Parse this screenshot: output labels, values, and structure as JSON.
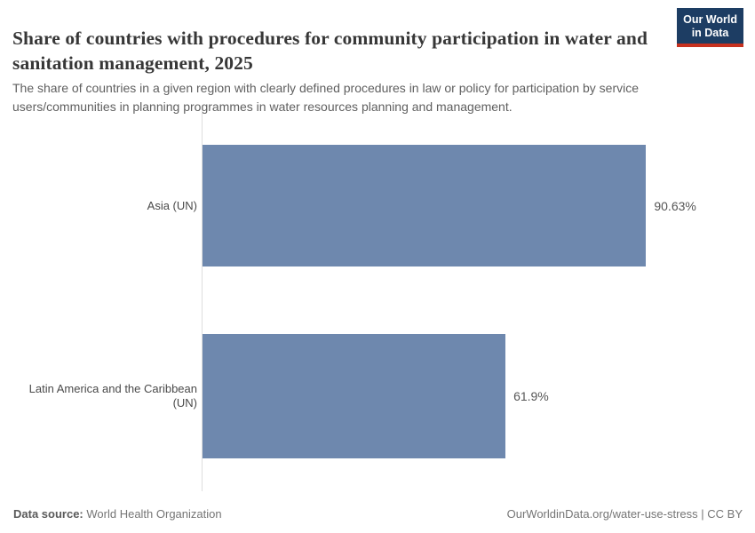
{
  "header": {
    "title": "Share of countries with procedures for community participation in water and sanitation management, 2025",
    "subtitle": "The share of countries in a given region with clearly defined procedures in law or policy for participation by service users/communities in planning programmes in water resources planning and management.",
    "logo": {
      "line1": "Our World",
      "line2": "in Data",
      "bg_color": "#1d3d63",
      "accent_color": "#c7311f"
    }
  },
  "chart_data": {
    "type": "bar",
    "orientation": "horizontal",
    "title": "Share of countries with procedures for community participation in water and sanitation management, 2025",
    "categories": [
      "Asia (UN)",
      "Latin America and the Caribbean (UN)"
    ],
    "values": [
      90.63,
      61.9
    ],
    "value_labels": [
      "90.63%",
      "61.9%"
    ],
    "label_display": [
      "Asia (UN)",
      "Latin America and the Caribbean\n(UN)"
    ],
    "xlim": [
      0,
      100
    ],
    "unit": "%",
    "bar_color": "#6e88ae",
    "grid": false,
    "legend": false,
    "axis_line_color": "#dedede"
  },
  "footer": {
    "source_label": "Data source:",
    "source_value": "World Health Organization",
    "attribution": "OurWorldinData.org/water-use-stress | CC BY"
  }
}
